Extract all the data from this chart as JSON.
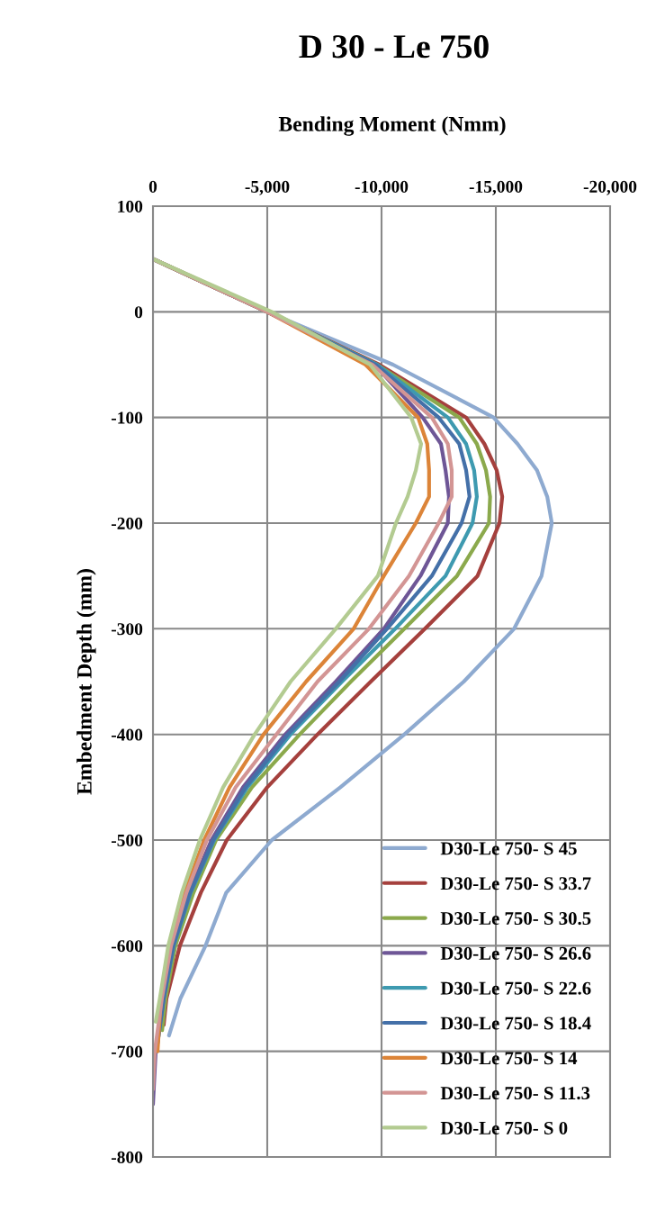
{
  "chart_data": {
    "type": "line",
    "title": "D 30 - Le 750",
    "xlabel": "Bending Moment (Nmm)",
    "ylabel": "Embedment Depth (mm)",
    "xlim": [
      0,
      -20000
    ],
    "xticks": [
      0,
      {
        "value": -5000,
        "label": "-5,000"
      },
      {
        "value": -10000,
        "label": "-10,000"
      },
      {
        "value": -15000,
        "label": "-15,000"
      },
      {
        "value": -20000,
        "label": "-20,000"
      }
    ],
    "ylim": [
      -800,
      100
    ],
    "yticks": [
      100,
      0,
      -100,
      -200,
      -300,
      -400,
      -500,
      -600,
      -700,
      -800
    ],
    "grid": true,
    "legend": "bottom right",
    "marker": "none",
    "line_style": "solid",
    "series": [
      {
        "name": "D30-Le 750- S 45",
        "color": "#8eaad0",
        "x": [
          0,
          -5000,
          -10500,
          -14900,
          -15950,
          -16800,
          -17250,
          -17450,
          -17000,
          -15800,
          -13600,
          -11000,
          -8200,
          -5200,
          -3200,
          -2300,
          -1200,
          -700
        ],
        "values": [
          50,
          0,
          -50,
          -100,
          -125,
          -150,
          -175,
          -200,
          -250,
          -300,
          -350,
          -400,
          -450,
          -500,
          -550,
          -600,
          -650,
          -685
        ]
      },
      {
        "name": "D30-Le 750- S 33.7",
        "color": "#a5403d",
        "x": [
          0,
          -5000,
          -9900,
          -13700,
          -14500,
          -15040,
          -15280,
          -15160,
          -14200,
          -11900,
          -9530,
          -7200,
          -5000,
          -3230,
          -2090,
          -1180,
          -590,
          -470
        ],
        "values": [
          50,
          0,
          -50,
          -100,
          -125,
          -150,
          -175,
          -200,
          -250,
          -300,
          -350,
          -400,
          -450,
          -500,
          -550,
          -600,
          -650,
          -675
        ]
      },
      {
        "name": "D30-Le 750- S 30.5",
        "color": "#8ba94c",
        "x": [
          0,
          -5000,
          -9800,
          -13400,
          -14170,
          -14570,
          -14750,
          -14700,
          -13300,
          -11000,
          -8660,
          -6420,
          -4330,
          -2760,
          -1770,
          -980,
          -550,
          -400
        ],
        "values": [
          50,
          0,
          -50,
          -100,
          -125,
          -150,
          -175,
          -200,
          -250,
          -300,
          -350,
          -400,
          -450,
          -500,
          -550,
          -600,
          -650,
          -680
        ]
      },
      {
        "name": "D30-Le 750- S 26.6",
        "color": "#6e5696",
        "x": [
          0,
          -5000,
          -9700,
          -11800,
          -12600,
          -12800,
          -12950,
          -12900,
          -11700,
          -10100,
          -8000,
          -5790,
          -3940,
          -2560,
          -1570,
          -870,
          -470,
          -120,
          0
        ],
        "values": [
          50,
          0,
          -50,
          -100,
          -125,
          -150,
          -175,
          -200,
          -250,
          -300,
          -350,
          -400,
          -450,
          -500,
          -550,
          -600,
          -650,
          -700,
          -750
        ]
      },
      {
        "name": "D30-Le 750- S 22.6",
        "color": "#3e9ab0",
        "x": [
          0,
          -5000,
          -9800,
          -12900,
          -13700,
          -14050,
          -14170,
          -13980,
          -12800,
          -10600,
          -8270,
          -6020,
          -4130,
          -2680,
          -1650,
          -910,
          -470,
          -150
        ],
        "values": [
          50,
          0,
          -50,
          -100,
          -125,
          -150,
          -175,
          -200,
          -250,
          -300,
          -350,
          -400,
          -450,
          -500,
          -550,
          -600,
          -650,
          -700
        ]
      },
      {
        "name": "D30-Le 750- S 18.4",
        "color": "#4470a8",
        "x": [
          0,
          -5000,
          -9750,
          -12500,
          -13400,
          -13700,
          -13850,
          -13500,
          -12200,
          -10240,
          -8150,
          -5900,
          -4050,
          -2640,
          -1620,
          -890,
          -470,
          -150
        ],
        "values": [
          50,
          0,
          -50,
          -100,
          -125,
          -150,
          -175,
          -200,
          -250,
          -300,
          -350,
          -400,
          -450,
          -500,
          -550,
          -600,
          -650,
          -700
        ]
      },
      {
        "name": "D30-Le 750- S 14",
        "color": "#dc8438",
        "x": [
          0,
          -5000,
          -9300,
          -11600,
          -12000,
          -12080,
          -12080,
          -11500,
          -10100,
          -8780,
          -6700,
          -4840,
          -3350,
          -2240,
          -1380,
          -710,
          -350,
          -200
        ],
        "values": [
          50,
          0,
          -50,
          -100,
          -125,
          -150,
          -175,
          -200,
          -250,
          -300,
          -350,
          -400,
          -450,
          -500,
          -550,
          -600,
          -650,
          -700
        ]
      },
      {
        "name": "D30-Le 750- S 11.3",
        "color": "#d39594",
        "x": [
          0,
          -5000,
          -9600,
          -12200,
          -12900,
          -13070,
          -13070,
          -12500,
          -11200,
          -9450,
          -7200,
          -5400,
          -3620,
          -2360,
          -1460,
          -790,
          -390,
          -80,
          0
        ],
        "values": [
          50,
          0,
          -50,
          -100,
          -125,
          -150,
          -175,
          -200,
          -250,
          -300,
          -350,
          -400,
          -450,
          -500,
          -550,
          -600,
          -650,
          -700,
          -736
        ]
      },
      {
        "name": "D30-Le 750- S 0",
        "color": "#b3cb91",
        "x": [
          0,
          -5200,
          -9500,
          -11300,
          -11730,
          -11500,
          -11140,
          -10630,
          -9840,
          -8000,
          -6020,
          -4450,
          -3070,
          -2050,
          -1260,
          -670,
          -300,
          -120
        ],
        "values": [
          50,
          0,
          -50,
          -100,
          -125,
          -150,
          -175,
          -200,
          -250,
          -300,
          -350,
          -400,
          -450,
          -500,
          -550,
          -600,
          -650,
          -672
        ]
      }
    ]
  }
}
